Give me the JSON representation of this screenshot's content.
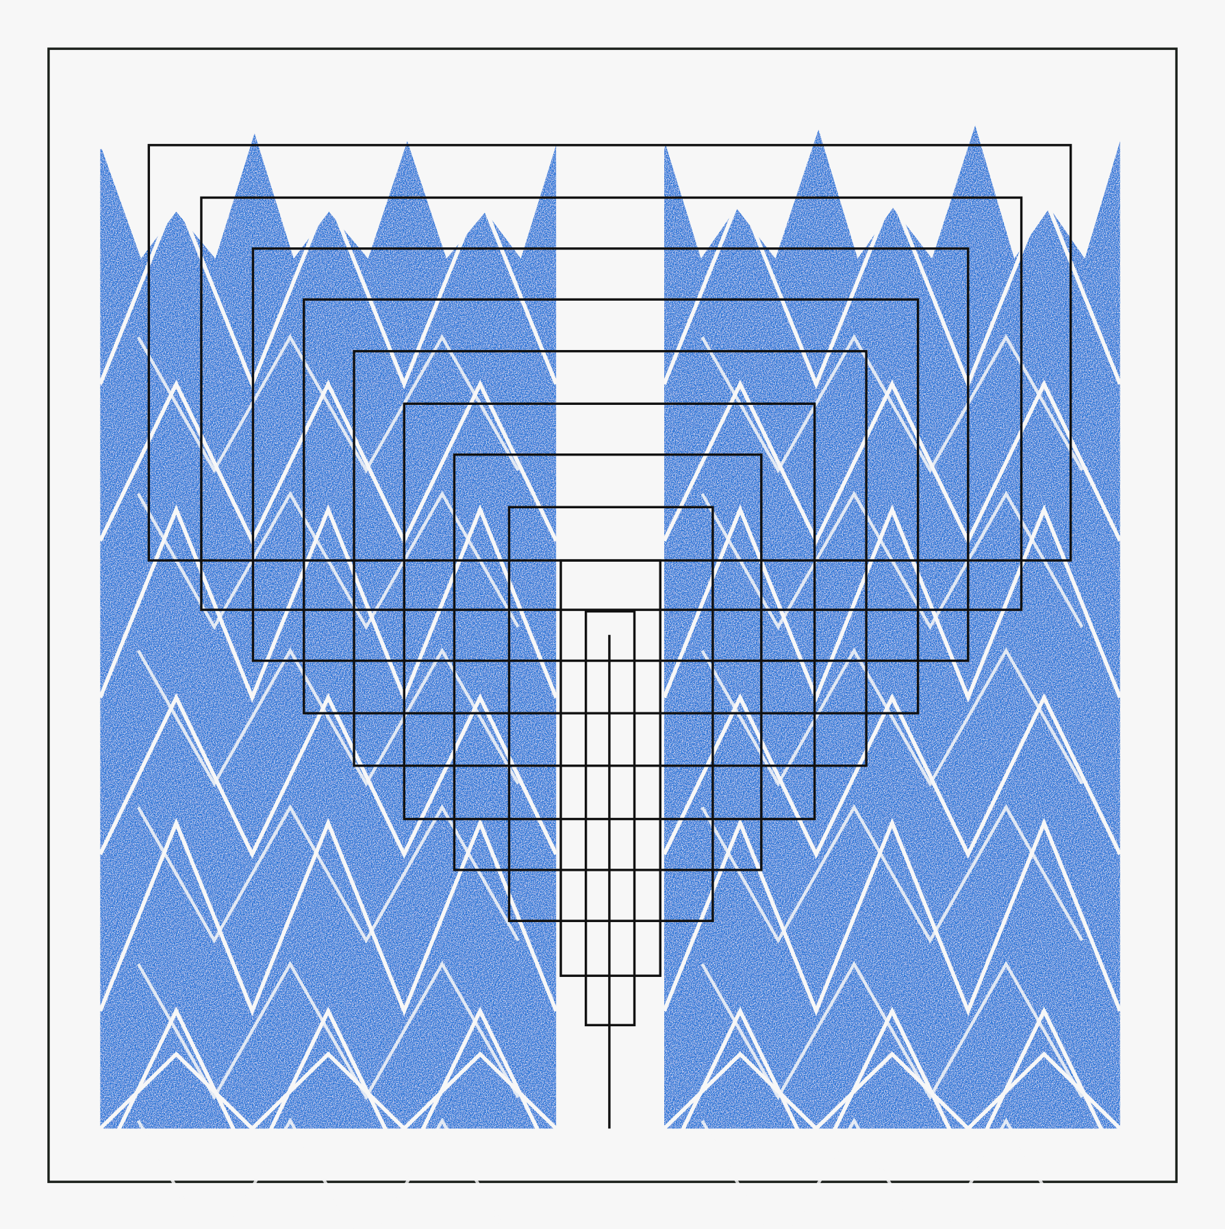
{
  "artwork": {
    "colors": {
      "background": "#f7f7f7",
      "stipple_blue": "#1f6fd6",
      "stipple_dark": "#0b3fb8",
      "line": "#111111",
      "frame": "#1a1f1a"
    },
    "motifs": [
      "nested-rectangles",
      "zigzag-triangles",
      "central-comb"
    ]
  }
}
